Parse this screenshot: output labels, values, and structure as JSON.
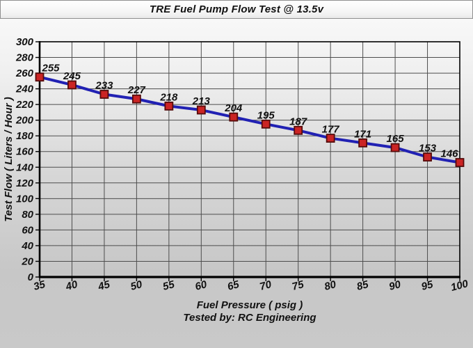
{
  "window": {
    "title": "TRE Fuel Pump Flow Test @ 13.5v"
  },
  "chart_data": {
    "type": "line",
    "title": "TRE Fuel Pump Flow Test @ 13.5v",
    "xlabel": "Fuel Pressure ( psig )",
    "ylabel": "Test Flow ( Liters / Hour )",
    "footer": "Tested by: RC Engineering",
    "x": [
      35,
      40,
      45,
      50,
      55,
      60,
      65,
      70,
      75,
      80,
      85,
      90,
      95,
      100
    ],
    "series": [
      {
        "name": "Test Flow",
        "values": [
          255,
          245,
          233,
          227,
          218,
          213,
          204,
          195,
          187,
          177,
          171,
          165,
          153,
          146
        ]
      }
    ],
    "data_labels": [
      255,
      245,
      233,
      227,
      218,
      213,
      204,
      195,
      187,
      177,
      171,
      165,
      153,
      146
    ],
    "xlim": [
      35,
      100
    ],
    "ylim": [
      0,
      300
    ],
    "x_ticks": [
      35,
      40,
      45,
      50,
      55,
      60,
      65,
      70,
      75,
      80,
      85,
      90,
      95,
      100
    ],
    "y_ticks": [
      0,
      20,
      40,
      60,
      80,
      100,
      120,
      140,
      160,
      180,
      200,
      220,
      240,
      260,
      280,
      300
    ],
    "grid": true,
    "legend": "none",
    "marker": "square",
    "colors": {
      "line": "#2121b3",
      "marker_fill": "#cb2424",
      "marker_border": "#550b0b",
      "grid": "#4d4d4d",
      "axis": "#000000",
      "text": "#111111"
    }
  }
}
